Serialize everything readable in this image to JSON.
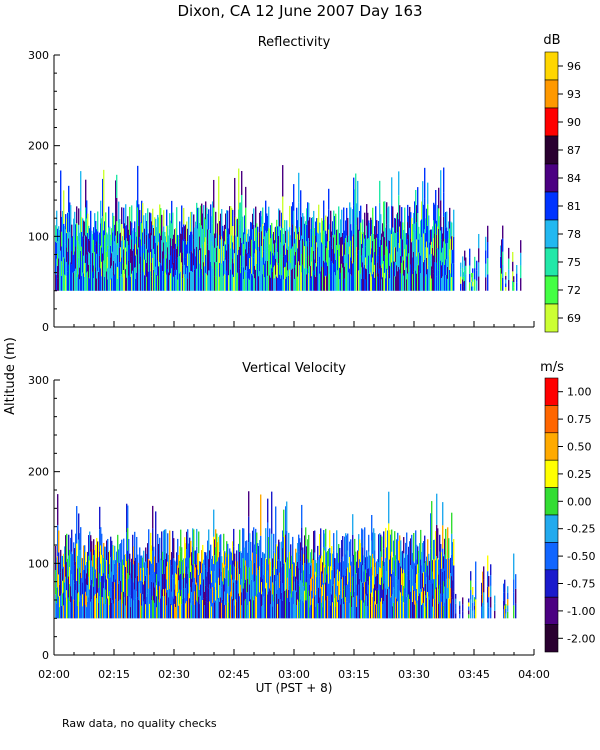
{
  "figure": {
    "title": "Dixon, CA 12 June 2007  Day 163",
    "ylabel": "Altitude (m)",
    "xlabel": "UT  (PST + 8)",
    "footnote": "Raw data, no quality checks"
  },
  "chart_data": [
    {
      "type": "heatmap",
      "title": "Reflectivity",
      "ylabel": "Altitude (m)",
      "xlabel": "UT  (PST + 8)",
      "ylim": [
        0,
        300
      ],
      "yticks": [
        0,
        100,
        200,
        300
      ],
      "xlim": [
        "02:00",
        "04:00"
      ],
      "xticks": [
        "02:00",
        "02:15",
        "02:30",
        "02:45",
        "03:00",
        "03:15",
        "03:30",
        "03:45",
        "04:00"
      ],
      "colorbar": {
        "unit": "dB",
        "labels": [
          "96",
          "93",
          "90",
          "87",
          "84",
          "81",
          "78",
          "75",
          "72",
          "69"
        ],
        "colors": [
          "#ffd600",
          "#ff9900",
          "#ff0000",
          "#2a0030",
          "#4b0082",
          "#0033ff",
          "#22b8f0",
          "#22e8a8",
          "#44ff44",
          "#ccff33"
        ]
      },
      "echo_summary": {
        "base_altitude_m": 40,
        "typical_top_m": [
          100,
          140
        ],
        "max_top_m": 180,
        "continuous_until": "03:40",
        "intermittent_until": "03:57"
      }
    },
    {
      "type": "heatmap",
      "title": "Vertical Velocity",
      "ylabel": "Altitude (m)",
      "xlabel": "UT  (PST + 8)",
      "ylim": [
        0,
        300
      ],
      "yticks": [
        0,
        100,
        200,
        300
      ],
      "xlim": [
        "02:00",
        "04:00"
      ],
      "xticks": [
        "02:00",
        "02:15",
        "02:30",
        "02:45",
        "03:00",
        "03:15",
        "03:30",
        "03:45",
        "04:00"
      ],
      "colorbar": {
        "unit": "m/s",
        "labels": [
          "1.00",
          "0.75",
          "0.50",
          "0.25",
          "0.00",
          "-0.25",
          "-0.50",
          "-0.75",
          "-1.00",
          "-2.00"
        ],
        "colors": [
          "#ff0000",
          "#ff6600",
          "#ffaa00",
          "#ffff00",
          "#33dd33",
          "#22aaee",
          "#1166ff",
          "#1a1acc",
          "#4b0082",
          "#2a0030"
        ]
      },
      "echo_summary": {
        "base_altitude_m": 40,
        "typical_top_m": [
          100,
          140
        ],
        "max_top_m": 180,
        "continuous_until": "03:40",
        "intermittent_until": "03:57"
      }
    }
  ]
}
